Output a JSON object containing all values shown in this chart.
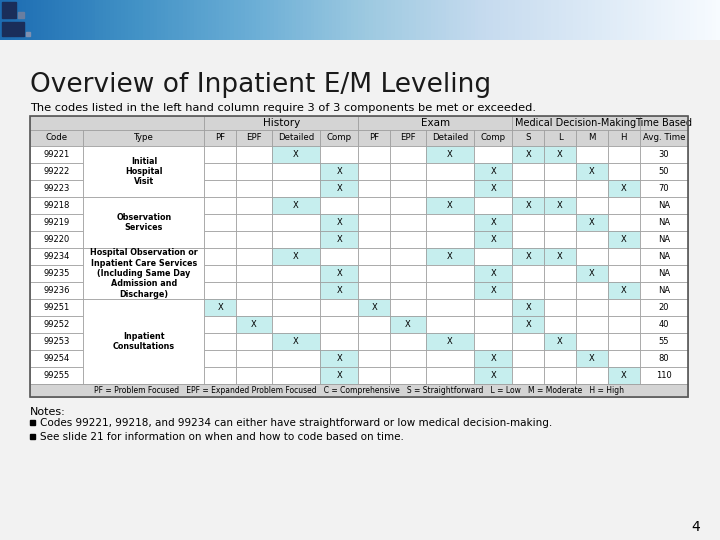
{
  "title": "Overview of Inpatient E/M Leveling",
  "subtitle": "The codes listed in the left hand column require 3 of 3 components be met or exceeded.",
  "notes": [
    "Codes 99221, 99218, and 99234 can either have straightforward or low medical decision-making.",
    "See slide 21 for information on when and how to code based on time."
  ],
  "footnote": "PF = Problem Focused   EPF = Expanded Problem Focused   C = Comprehensive   S = Straightforward   L = Low   M = Moderate   H = High",
  "page_number": "4",
  "col_headers": [
    "Code",
    "Type",
    "PF",
    "EPF",
    "Detailed",
    "Comp",
    "PF",
    "EPF",
    "Detailed",
    "Comp",
    "S",
    "L",
    "M",
    "H",
    "Avg. Time"
  ],
  "rows": [
    {
      "code": "99221",
      "type": "Initial\nHospital\nVisit",
      "cols": [
        "",
        "",
        "X",
        "",
        "",
        "",
        "X",
        "",
        "X",
        "X",
        "",
        "",
        "30"
      ],
      "type_rowspan": 3
    },
    {
      "code": "99222",
      "type": "",
      "cols": [
        "",
        "",
        "",
        "X",
        "",
        "",
        "",
        "X",
        "",
        "",
        "X",
        "",
        "50"
      ],
      "type_rowspan": 0
    },
    {
      "code": "99223",
      "type": "",
      "cols": [
        "",
        "",
        "",
        "X",
        "",
        "",
        "",
        "X",
        "",
        "",
        "",
        "X",
        "70"
      ],
      "type_rowspan": 0
    },
    {
      "code": "99218",
      "type": "Observation\nServices",
      "cols": [
        "",
        "",
        "X",
        "",
        "",
        "",
        "X",
        "",
        "X",
        "X",
        "",
        "",
        "NA"
      ],
      "type_rowspan": 3
    },
    {
      "code": "99219",
      "type": "",
      "cols": [
        "",
        "",
        "",
        "X",
        "",
        "",
        "",
        "X",
        "",
        "",
        "X",
        "",
        "NA"
      ],
      "type_rowspan": 0
    },
    {
      "code": "99220",
      "type": "",
      "cols": [
        "",
        "",
        "",
        "X",
        "",
        "",
        "",
        "X",
        "",
        "",
        "",
        "X",
        "NA"
      ],
      "type_rowspan": 0
    },
    {
      "code": "99234",
      "type": "Hospital Observation or\nInpatient Care Services\n(Including Same Day\nAdmission and\nDischarge)",
      "cols": [
        "",
        "",
        "X",
        "",
        "",
        "",
        "X",
        "",
        "X",
        "X",
        "",
        "",
        "NA"
      ],
      "type_rowspan": 3
    },
    {
      "code": "99235",
      "type": "",
      "cols": [
        "",
        "",
        "",
        "X",
        "",
        "",
        "",
        "X",
        "",
        "",
        "X",
        "",
        "NA"
      ],
      "type_rowspan": 0
    },
    {
      "code": "99236",
      "type": "",
      "cols": [
        "",
        "",
        "",
        "X",
        "",
        "",
        "",
        "X",
        "",
        "",
        "",
        "X",
        "NA"
      ],
      "type_rowspan": 0
    },
    {
      "code": "99251",
      "type": "Inpatient\nConsultations",
      "cols": [
        "X",
        "",
        "",
        "",
        "X",
        "",
        "",
        "",
        "X",
        "",
        "",
        "",
        "20"
      ],
      "type_rowspan": 5
    },
    {
      "code": "99252",
      "type": "",
      "cols": [
        "",
        "X",
        "",
        "",
        "",
        "X",
        "",
        "",
        "X",
        "",
        "",
        "",
        "40"
      ],
      "type_rowspan": 0
    },
    {
      "code": "99253",
      "type": "",
      "cols": [
        "",
        "",
        "X",
        "",
        "",
        "",
        "X",
        "",
        "",
        "X",
        "",
        "",
        "55"
      ],
      "type_rowspan": 0
    },
    {
      "code": "99254",
      "type": "",
      "cols": [
        "",
        "",
        "",
        "X",
        "",
        "",
        "",
        "X",
        "",
        "",
        "X",
        "",
        "80"
      ],
      "type_rowspan": 0
    },
    {
      "code": "99255",
      "type": "",
      "cols": [
        "",
        "",
        "",
        "X",
        "",
        "",
        "",
        "X",
        "",
        "",
        "",
        "X",
        "110"
      ],
      "type_rowspan": 0
    }
  ],
  "bg_cyan": "#c6eeee",
  "bg_header_gray": "#d4d4d4",
  "bg_white": "#ffffff",
  "border_color": "#999999",
  "slide_bg_body": "#f2f2f2",
  "title_color": "#1a1a1a",
  "text_color": "#000000"
}
